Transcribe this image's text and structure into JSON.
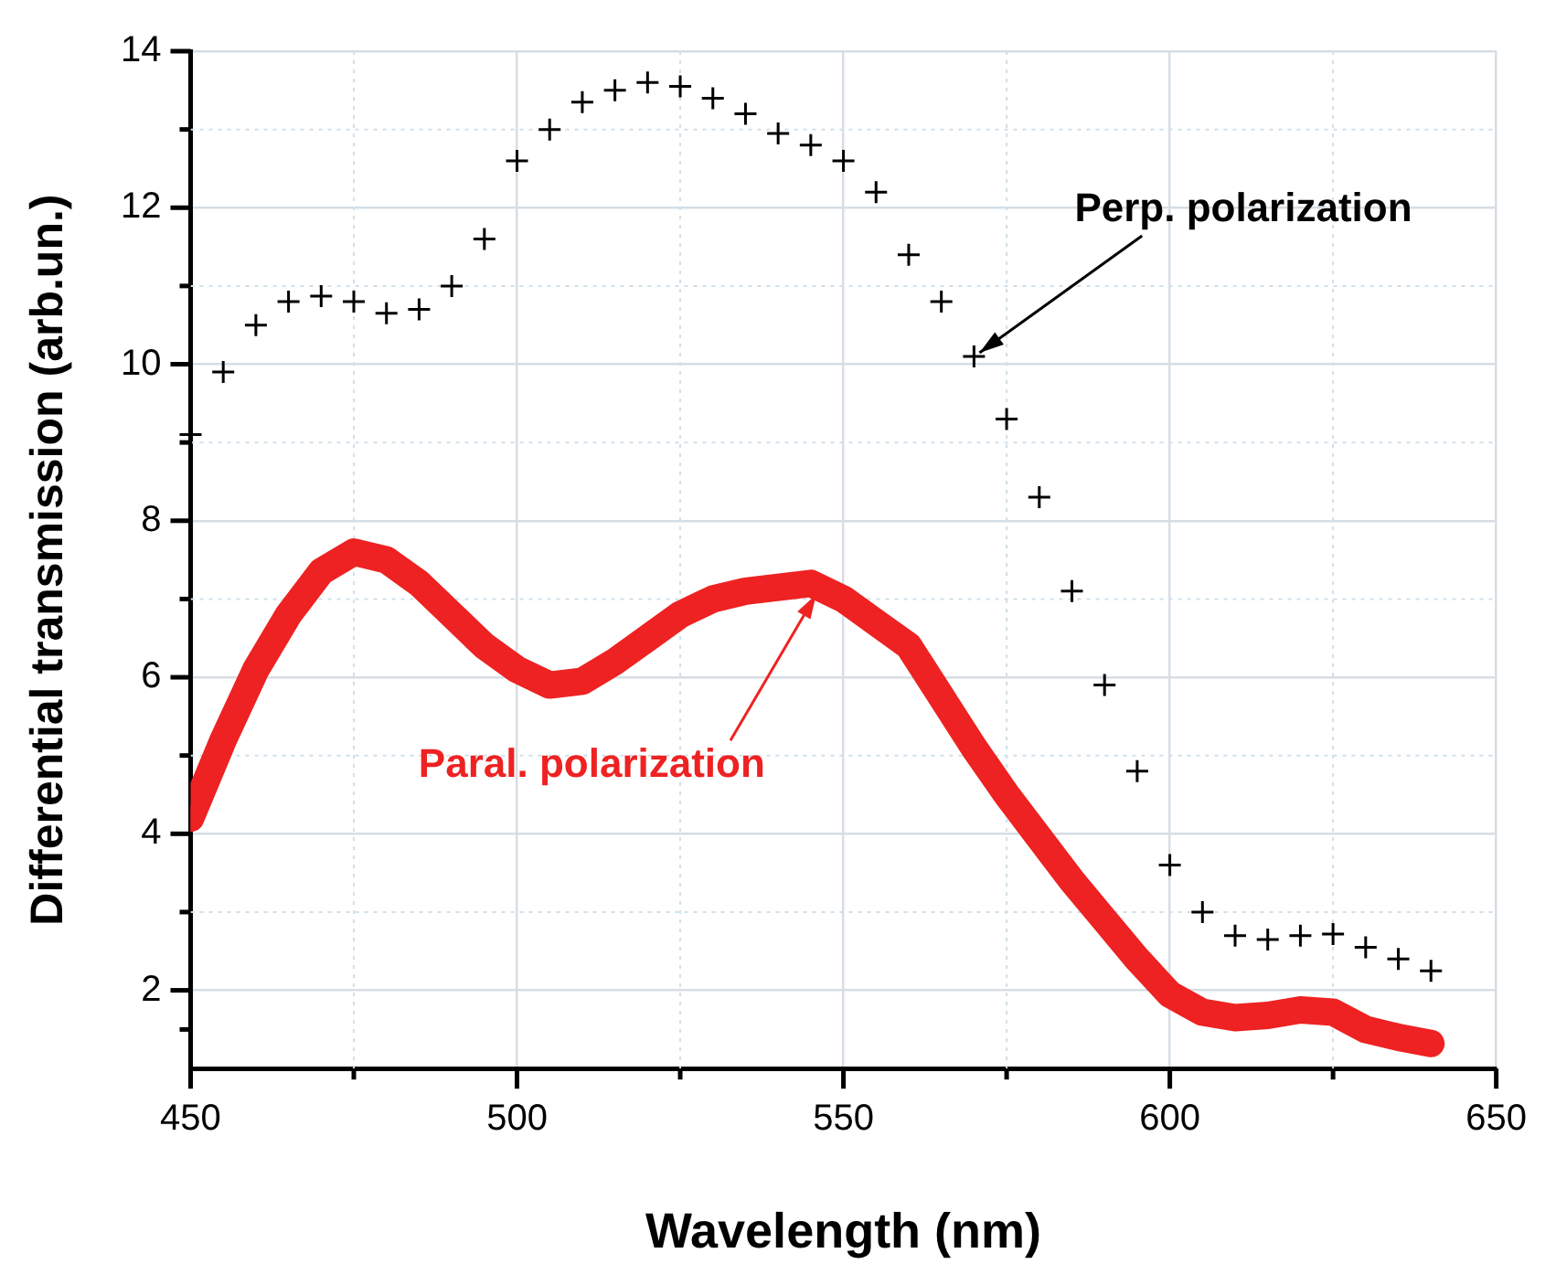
{
  "chart_data": {
    "type": "scatter",
    "xlabel": "Wavelength (nm)",
    "ylabel": "Differential transmission (arb.un.)",
    "xlim": [
      450,
      650
    ],
    "xticks": [
      450,
      500,
      550,
      600,
      650
    ],
    "ylim": [
      1,
      14
    ],
    "yticks": [
      2,
      4,
      6,
      8,
      10,
      12,
      14
    ],
    "grid": true,
    "legend": false,
    "x": [
      450,
      455,
      460,
      465,
      470,
      475,
      480,
      485,
      490,
      495,
      500,
      505,
      510,
      515,
      520,
      525,
      530,
      535,
      540,
      545,
      550,
      555,
      560,
      565,
      570,
      575,
      580,
      585,
      590,
      595,
      600,
      605,
      610,
      615,
      620,
      625,
      630,
      635,
      640
    ],
    "series": [
      {
        "marker": "cross",
        "color": "#000000",
        "values": [
          9.1,
          9.9,
          10.5,
          10.8,
          10.87,
          10.8,
          10.65,
          10.7,
          11.0,
          11.6,
          12.6,
          13.0,
          13.35,
          13.5,
          13.6,
          13.55,
          13.4,
          13.2,
          12.95,
          12.8,
          12.6,
          12.2,
          11.4,
          10.8,
          10.1,
          9.3,
          8.3,
          7.1,
          5.9,
          4.8,
          3.6,
          3.0,
          2.7,
          2.65,
          2.7,
          2.72,
          2.55,
          2.4,
          2.25
        ]
      },
      {
        "type": "line",
        "marker": "circle",
        "color": "#ee2222",
        "values": [
          4.2,
          5.2,
          6.1,
          6.8,
          7.35,
          7.6,
          7.5,
          7.2,
          6.8,
          6.4,
          6.1,
          5.9,
          5.95,
          6.2,
          6.5,
          6.8,
          7.0,
          7.1,
          7.15,
          7.2,
          7.0,
          6.7,
          6.4,
          5.75,
          5.1,
          4.5,
          3.95,
          3.4,
          2.9,
          2.4,
          1.95,
          1.72,
          1.65,
          1.68,
          1.75,
          1.72,
          1.5,
          1.4,
          1.32
        ]
      }
    ],
    "annotations": [
      {
        "text": "Perp. polarization",
        "x": 570,
        "y": 10.1
      },
      {
        "text": "Paral. polarization",
        "x": 545,
        "y": 7.2
      }
    ]
  }
}
